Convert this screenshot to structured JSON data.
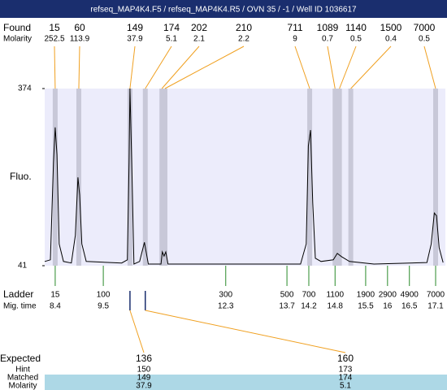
{
  "title": "refseq_MAP4K4.F5 / refseq_MAP4K4.R5 / OVN 35 / -1 / Well ID 1036617",
  "found": {
    "label": "Found",
    "molarity_label": "Molarity",
    "peaks": [
      {
        "size": 15,
        "molarity": 252.5,
        "time": 8.4
      },
      {
        "size": 60,
        "molarity": 113.9,
        "time": 8.94
      },
      {
        "size": 149,
        "molarity": 37.9,
        "time": 10.11
      },
      {
        "size": 174,
        "molarity": 5.1,
        "time": 10.46
      },
      {
        "size": 202,
        "molarity": 2.1,
        "time": 10.84
      },
      {
        "size": 210,
        "molarity": 2.2,
        "time": 10.91
      },
      {
        "size": 711,
        "molarity": 9,
        "time": 14.22
      },
      {
        "size": 1089,
        "molarity": 0.7,
        "time": 14.8
      },
      {
        "size": 1140,
        "molarity": 0.5,
        "time": 14.9
      },
      {
        "size": 1500,
        "molarity": 0.4,
        "time": 15.16
      },
      {
        "size": 7000,
        "molarity": 0.5,
        "time": 17.1
      }
    ]
  },
  "ladder": {
    "label": "Ladder",
    "time_label": "Mig. time",
    "peaks": [
      {
        "size": 15,
        "time": 8.4
      },
      {
        "size": 100,
        "time": 9.5
      },
      {
        "size": 300,
        "time": 12.3
      },
      {
        "size": 500,
        "time": 13.7
      },
      {
        "size": 700,
        "time": 14.2
      },
      {
        "size": 1100,
        "time": 14.8
      },
      {
        "size": 1900,
        "time": 15.5
      },
      {
        "size": 2900,
        "time": 16
      },
      {
        "size": 4900,
        "time": 16.5
      },
      {
        "size": 7000,
        "time": 17.1
      }
    ]
  },
  "expected": {
    "labels": [
      "Expected",
      "Hint",
      "Matched",
      "Molarity"
    ],
    "columns": [
      {
        "expected": 136,
        "hint": 150,
        "matched": 149,
        "molarity": 37.9
      },
      {
        "expected": 160,
        "hint": 173,
        "matched": 174,
        "molarity": 5.1
      }
    ]
  },
  "chart_data": {
    "type": "line",
    "ylabel": "Fluo.",
    "x": [
      8.16,
      8.29,
      8.36,
      8.4,
      8.44,
      8.49,
      8.59,
      8.77,
      8.86,
      8.92,
      8.96,
      9.01,
      9.11,
      9.92,
      10.05,
      10.09,
      10.11,
      10.15,
      10.2,
      10.33,
      10.44,
      10.48,
      10.53,
      10.82,
      10.85,
      10.89,
      10.93,
      10.98,
      14.01,
      14.14,
      14.19,
      14.24,
      14.29,
      14.35,
      14.48,
      14.76,
      14.85,
      14.95,
      15.13,
      15.69,
      16.9,
      17.0,
      17.07,
      17.12,
      17.18,
      17.27
    ],
    "values": [
      49,
      52,
      235,
      301,
      250,
      82,
      49,
      46,
      98,
      207,
      174,
      82,
      49,
      46,
      52,
      235,
      374,
      235,
      44,
      49,
      85,
      67,
      44,
      44,
      67,
      59,
      67,
      44,
      44,
      82,
      266,
      296,
      159,
      55,
      49,
      52,
      64,
      58,
      49,
      44,
      47,
      82,
      140,
      135,
      75,
      47
    ],
    "xlim": [
      8.16,
      17.36
    ],
    "ylim": [
      41,
      374
    ],
    "yticks": [
      41,
      374
    ],
    "color": "#000000"
  }
}
